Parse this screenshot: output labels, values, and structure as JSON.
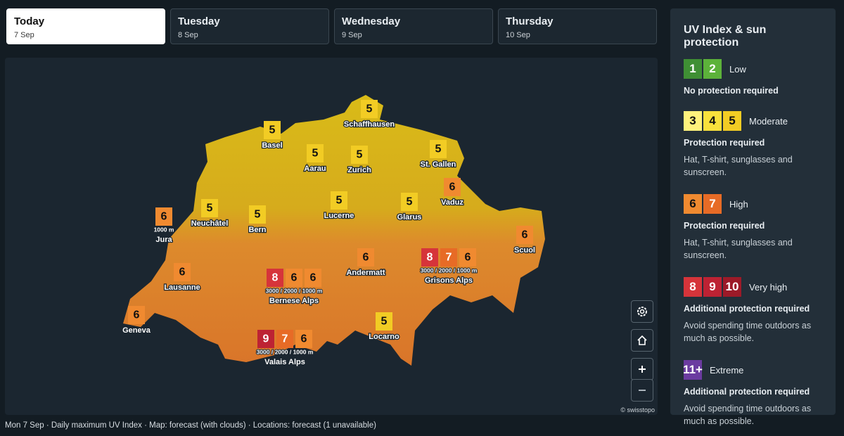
{
  "tabs": [
    {
      "day": "Today",
      "date": "7 Sep",
      "selected": true
    },
    {
      "day": "Tuesday",
      "date": "8 Sep",
      "selected": false
    },
    {
      "day": "Wednesday",
      "date": "9 Sep",
      "selected": false
    },
    {
      "day": "Thursday",
      "date": "10 Sep",
      "selected": false
    }
  ],
  "map": {
    "attribution": "© swisstopo",
    "locations": [
      {
        "name": "Schaffhausen",
        "uv": [
          5
        ]
      },
      {
        "name": "Basel",
        "uv": [
          5
        ]
      },
      {
        "name": "Aarau",
        "uv": [
          5
        ]
      },
      {
        "name": "Zurich",
        "uv": [
          5
        ]
      },
      {
        "name": "St. Gallen",
        "uv": [
          5
        ]
      },
      {
        "name": "Vaduz",
        "uv": [
          6
        ]
      },
      {
        "name": "Jura",
        "uv": [
          6
        ],
        "altitudes": "1000 m"
      },
      {
        "name": "Neuchâtel",
        "uv": [
          5
        ]
      },
      {
        "name": "Bern",
        "uv": [
          5
        ]
      },
      {
        "name": "Lucerne",
        "uv": [
          5
        ]
      },
      {
        "name": "Glarus",
        "uv": [
          5
        ]
      },
      {
        "name": "Scuol",
        "uv": [
          6
        ]
      },
      {
        "name": "Lausanne",
        "uv": [
          6
        ]
      },
      {
        "name": "Bernese Alps",
        "uv": [
          8,
          6,
          6
        ],
        "altitudes": "3000 / 2000 / 1000 m"
      },
      {
        "name": "Andermatt",
        "uv": [
          6
        ]
      },
      {
        "name": "Grisons Alps",
        "uv": [
          8,
          7,
          6
        ],
        "altitudes": "3000 / 2000 / 1000 m"
      },
      {
        "name": "Geneva",
        "uv": [
          6
        ]
      },
      {
        "name": "Locarno",
        "uv": [
          5
        ]
      },
      {
        "name": "Valais Alps",
        "uv": [
          9,
          7,
          6
        ],
        "altitudes": "3000 / 2000 / 1000 m"
      }
    ]
  },
  "legend": {
    "title": "UV Index & sun protection",
    "levels": [
      {
        "items": [
          {
            "value": 1,
            "color": "#3f8f34"
          },
          {
            "value": 2,
            "color": "#5cb23a"
          }
        ],
        "label": "Low",
        "protection": "No protection required"
      },
      {
        "items": [
          {
            "value": 3,
            "color": "#fff27c"
          },
          {
            "value": 4,
            "color": "#f9e13c"
          },
          {
            "value": 5,
            "color": "#f2cc24"
          }
        ],
        "label": "Moderate",
        "protection": "Protection required",
        "advice": "Hat, T-shirt, sunglasses and sunscreen."
      },
      {
        "items": [
          {
            "value": 6,
            "color": "#f08a30"
          },
          {
            "value": 7,
            "color": "#e76b26"
          }
        ],
        "label": "High",
        "protection": "Protection required",
        "advice": "Hat, T-shirt, sunglasses and sunscreen."
      },
      {
        "items": [
          {
            "value": 8,
            "color": "#d6343a"
          },
          {
            "value": 9,
            "color": "#bd2233"
          },
          {
            "value": 10,
            "color": "#9c1a28"
          }
        ],
        "label": "Very high",
        "protection": "Additional protection required",
        "advice": "Avoid spending time outdoors as much as possible."
      },
      {
        "items": [
          {
            "value": "11+",
            "color": "#6b3ba0"
          }
        ],
        "label": "Extreme",
        "protection": "Additional protection required",
        "advice": "Avoid spending time outdoors as much as possible."
      }
    ]
  },
  "footer": "Mon 7 Sep · Daily maximum UV Index · Map: forecast (with clouds) · Locations: forecast (1 unavailable)"
}
